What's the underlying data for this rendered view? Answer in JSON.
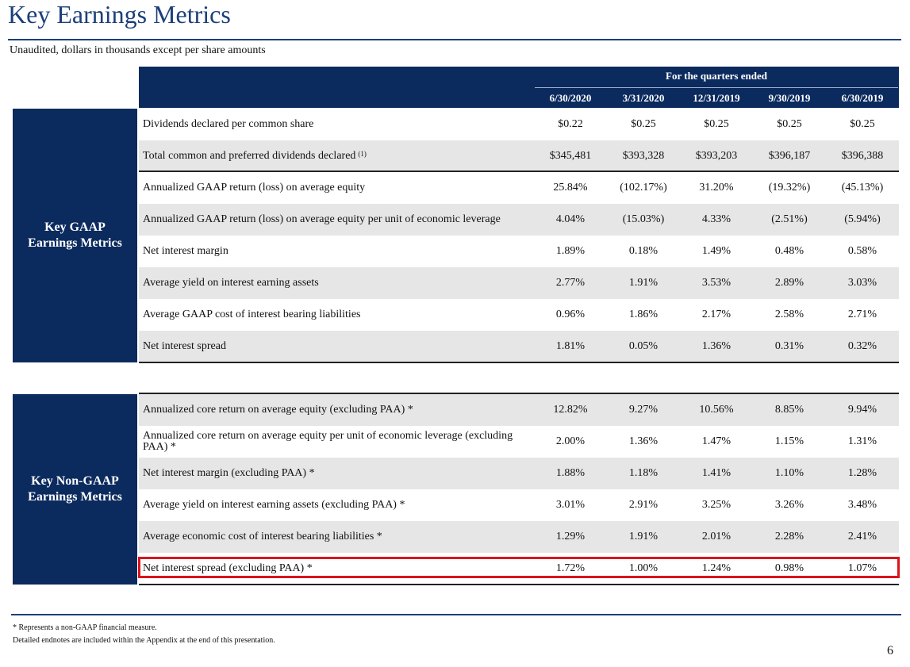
{
  "title": "Key Earnings Metrics",
  "subtitle": "Unaudited, dollars in thousands except per share amounts",
  "table": {
    "period_header": "For the quarters ended",
    "columns": [
      "6/30/2020",
      "3/31/2020",
      "12/31/2019",
      "9/30/2019",
      "6/30/2019"
    ],
    "sections": [
      {
        "name_line1": "Key GAAP",
        "name_line2": "Earnings Metrics",
        "rows": [
          {
            "label": "Dividends declared per common share",
            "sup": "",
            "values": [
              "$0.22",
              "$0.25",
              "$0.25",
              "$0.25",
              "$0.25"
            ]
          },
          {
            "label": "Total common and preferred dividends declared",
            "sup": "(1)",
            "values": [
              "$345,481",
              "$393,328",
              "$393,203",
              "$396,187",
              "$396,388"
            ]
          },
          {
            "label": "Annualized GAAP return (loss) on average equity",
            "sup": "",
            "values": [
              "25.84%",
              "(102.17%)",
              "31.20%",
              "(19.32%)",
              "(45.13%)"
            ]
          },
          {
            "label": "Annualized GAAP return (loss) on average equity per unit of economic leverage",
            "sup": "",
            "values": [
              "4.04%",
              "(15.03%)",
              "4.33%",
              "(2.51%)",
              "(5.94%)"
            ]
          },
          {
            "label": "Net interest margin",
            "sup": "",
            "values": [
              "1.89%",
              "0.18%",
              "1.49%",
              "0.48%",
              "0.58%"
            ]
          },
          {
            "label": "Average yield on interest earning assets",
            "sup": "",
            "values": [
              "2.77%",
              "1.91%",
              "3.53%",
              "2.89%",
              "3.03%"
            ]
          },
          {
            "label": "Average GAAP cost of interest bearing liabilities",
            "sup": "",
            "values": [
              "0.96%",
              "1.86%",
              "2.17%",
              "2.58%",
              "2.71%"
            ]
          },
          {
            "label": "Net interest spread",
            "sup": "",
            "values": [
              "1.81%",
              "0.05%",
              "1.36%",
              "0.31%",
              "0.32%"
            ]
          }
        ]
      },
      {
        "name_line1": "Key Non-GAAP",
        "name_line2": "Earnings Metrics",
        "rows": [
          {
            "label": "Annualized core return on average equity (excluding PAA) *",
            "sup": "",
            "values": [
              "12.82%",
              "9.27%",
              "10.56%",
              "8.85%",
              "9.94%"
            ]
          },
          {
            "label": "Annualized core return on average equity per unit of economic leverage (excluding PAA) *",
            "sup": "",
            "values": [
              "2.00%",
              "1.36%",
              "1.47%",
              "1.15%",
              "1.31%"
            ]
          },
          {
            "label": "Net interest margin (excluding PAA) *",
            "sup": "",
            "values": [
              "1.88%",
              "1.18%",
              "1.41%",
              "1.10%",
              "1.28%"
            ]
          },
          {
            "label": "Average yield on interest earning assets (excluding PAA) *",
            "sup": "",
            "values": [
              "3.01%",
              "2.91%",
              "3.25%",
              "3.26%",
              "3.48%"
            ]
          },
          {
            "label": "Average economic cost of interest bearing liabilities *",
            "sup": "",
            "values": [
              "1.29%",
              "1.91%",
              "2.01%",
              "2.28%",
              "2.41%"
            ]
          },
          {
            "label": "Net interest spread (excluding PAA) *",
            "sup": "",
            "values": [
              "1.72%",
              "1.00%",
              "1.24%",
              "0.98%",
              "1.07%"
            ]
          }
        ]
      }
    ]
  },
  "footnotes": {
    "line1": "*  Represents a non-GAAP financial measure.",
    "line2": "Detailed endnotes are included within the Appendix at the end of this presentation."
  },
  "page_number": "6",
  "colors": {
    "navy": "#0b2a5e",
    "title_blue": "#1c3f7a",
    "highlight_red": "#d9141c",
    "row_shade": "#e6e6e6"
  }
}
